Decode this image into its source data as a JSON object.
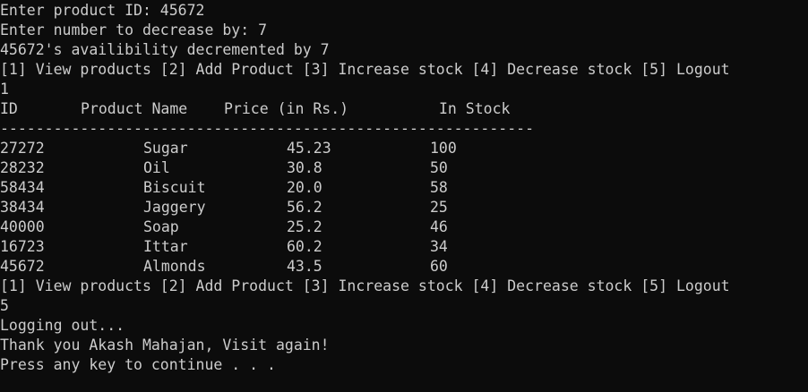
{
  "console": {
    "lines_top": [
      "Enter product ID: 45672",
      "Enter number to decrease by: 7",
      "45672's availibility decremented by 7",
      "[1] View products [2] Add Product [3] Increase stock [4] Decrease stock [5] Logout",
      "1"
    ],
    "table": {
      "headers": {
        "id": "ID",
        "name": "Product Name",
        "price": "Price (in Rs.)",
        "stock": "In Stock"
      },
      "separator": "------------------------------------------------------------",
      "rows": [
        {
          "id": "27272",
          "name": "Sugar",
          "price": "45.23",
          "stock": "100"
        },
        {
          "id": "28232",
          "name": "Oil",
          "price": "30.8",
          "stock": "50"
        },
        {
          "id": "58434",
          "name": "Biscuit",
          "price": "20.0",
          "stock": "58"
        },
        {
          "id": "38434",
          "name": "Jaggery",
          "price": "56.2",
          "stock": "25"
        },
        {
          "id": "40000",
          "name": "Soap",
          "price": "25.2",
          "stock": "46"
        },
        {
          "id": "16723",
          "name": "Ittar",
          "price": "60.2",
          "stock": "34"
        },
        {
          "id": "45672",
          "name": "Almonds",
          "price": "43.5",
          "stock": "60"
        }
      ]
    },
    "lines_bottom": [
      "[1] View products [2] Add Product [3] Increase stock [4] Decrease stock [5] Logout",
      "5",
      "Logging out...",
      "Thank you Akash Mahajan, Visit again!",
      "Press any key to continue . . ."
    ]
  }
}
